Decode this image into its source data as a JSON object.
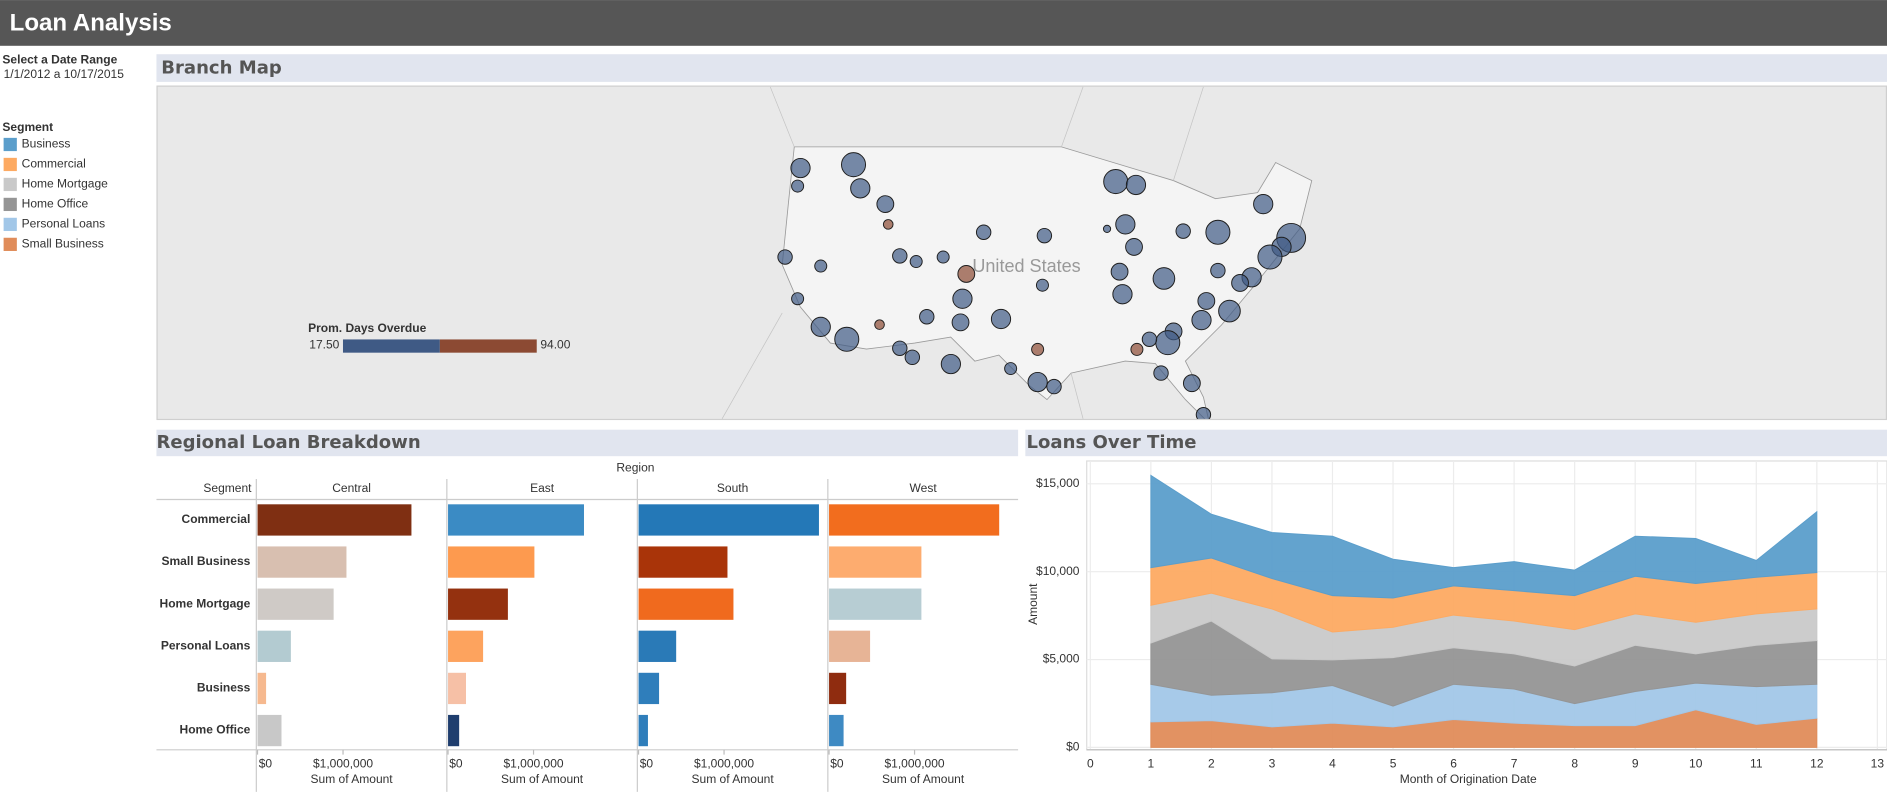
{
  "header": {
    "title": "Loan Analysis"
  },
  "filter": {
    "label": "Select a Date Range",
    "value": "1/1/2012 a 10/17/2015"
  },
  "chart_data": [
    {
      "type": "map",
      "title": "Branch Map",
      "place_label": "United States",
      "lon": [
        -122.2,
        -122.5,
        -116.7,
        -116.0,
        -113.4,
        -113.1,
        -123.8,
        -120.1,
        -122.5,
        -120.1,
        -117.4,
        -114.0,
        -111.9,
        -110.6,
        -106.6,
        -109.1,
        -105.6,
        -101.4,
        -103.2,
        -105.0,
        -105.4,
        -107.4,
        -111.9,
        -110.2,
        -100.4,
        -97.6,
        -95.9,
        -97.6,
        -96.9,
        -97.1,
        -89.5,
        -87.4,
        -88.5,
        -87.6,
        -89.1,
        -88.8,
        -84.5,
        -82.5,
        -78.9,
        -74.2,
        -71.3,
        -72.3,
        -73.5,
        -75.4,
        -76.6,
        -77.7,
        -80.1,
        -80.6,
        -83.5,
        -84.1,
        -87.3,
        -84.8,
        -81.6,
        -80.4,
        -86.0,
        -78.9,
        -90.4
      ],
      "lat": [
        47.8,
        46.2,
        48.1,
        46.0,
        44.6,
        42.8,
        39.9,
        39.1,
        36.2,
        33.7,
        32.6,
        33.9,
        31.8,
        31.0,
        30.4,
        34.6,
        34.1,
        34.4,
        42.1,
        38.4,
        36.2,
        39.9,
        40.0,
        39.5,
        30.0,
        28.8,
        28.4,
        31.7,
        41.8,
        37.4,
        46.6,
        46.3,
        42.8,
        40.8,
        38.6,
        36.6,
        38.0,
        42.2,
        42.1,
        44.6,
        41.6,
        40.8,
        39.9,
        38.1,
        37.6,
        35.1,
        36.0,
        34.3,
        33.3,
        32.3,
        31.7,
        29.6,
        28.7,
        25.9,
        32.6,
        38.7,
        42.4
      ],
      "days": [
        32,
        28,
        35,
        30,
        38,
        85,
        25,
        30,
        33,
        36,
        40,
        80,
        31,
        34,
        37,
        29,
        35,
        33,
        30,
        92,
        36,
        28,
        32,
        27,
        39,
        41,
        35,
        88,
        30,
        26,
        38,
        34,
        42,
        29,
        37,
        40,
        36,
        33,
        31,
        35,
        39,
        34,
        42,
        38,
        30,
        37,
        33,
        36,
        41,
        35,
        78,
        30,
        34,
        29,
        36,
        32,
        27
      ],
      "size": [
        8,
        5,
        10,
        8,
        7,
        4,
        6,
        5,
        5,
        8,
        10,
        4,
        6,
        6,
        8,
        6,
        7,
        8,
        6,
        7,
        8,
        5,
        6,
        5,
        5,
        8,
        6,
        5,
        6,
        5,
        10,
        8,
        8,
        7,
        7,
        8,
        9,
        6,
        10,
        8,
        12,
        8,
        10,
        8,
        7,
        9,
        7,
        8,
        7,
        10,
        5,
        6,
        7,
        6,
        6,
        6,
        3
      ],
      "color_legend": {
        "title": "Prom. Days Overdue",
        "range": [
          {
            "value": 17.5,
            "label": "17.50"
          },
          {
            "value": 94,
            "label": "94.00"
          }
        ],
        "colors": [
          "#3f5a85",
          "#8c4a33"
        ]
      }
    },
    {
      "type": "bar",
      "orientation": "horizontal",
      "title": "Regional Loan Breakdown",
      "column_title": "Region",
      "row_title": "Segment",
      "categories": [
        "Commercial",
        "Small Business",
        "Home Mortgage",
        "Personal Loans",
        "Business",
        "Home Office"
      ],
      "series": [
        {
          "name": "Central",
          "values": [
            1800000,
            1040000,
            890000,
            390000,
            100000,
            280000
          ],
          "colors": [
            "#7f2f12",
            "#d8bfb0",
            "#cfcac6",
            "#b3cbd1",
            "#f6b98f",
            "#c8c8c8"
          ]
        },
        {
          "name": "East",
          "values": [
            1590000,
            1010000,
            700000,
            410000,
            210000,
            130000
          ],
          "colors": [
            "#3b8bc4",
            "#fd9a4f",
            "#94310f",
            "#fda35e",
            "#f6c0a6",
            "#1f3e6e"
          ]
        },
        {
          "name": "South",
          "values": [
            2110000,
            1040000,
            1110000,
            440000,
            240000,
            110000
          ],
          "colors": [
            "#2478b7",
            "#a93409",
            "#f06a1e",
            "#2a7ab7",
            "#2f7ebb",
            "#2f7ebb"
          ]
        },
        {
          "name": "West",
          "values": [
            1990000,
            1080000,
            1080000,
            480000,
            200000,
            170000
          ],
          "colors": [
            "#f26d1e",
            "#fdac6f",
            "#b7cdd3",
            "#e7b496",
            "#8f2c0f",
            "#3e8ac3"
          ]
        }
      ],
      "xlim": [
        0,
        2200000
      ],
      "xticks": [
        {
          "value": 0,
          "label": "$0"
        },
        {
          "value": 1000000,
          "label": "$1,000,000"
        }
      ],
      "xlabel": "Sum of Amount"
    },
    {
      "type": "area",
      "stacked": true,
      "title": "Loans Over Time",
      "legend_title": "Segment",
      "x": [
        1,
        2,
        3,
        4,
        5,
        6,
        7,
        8,
        9,
        10,
        11,
        12
      ],
      "xlim": [
        0,
        13
      ],
      "xticks": [
        0,
        1,
        2,
        3,
        4,
        5,
        6,
        7,
        8,
        9,
        10,
        11,
        12,
        13
      ],
      "ylim": [
        0,
        16300
      ],
      "yticks": [
        {
          "value": 0,
          "label": "$0"
        },
        {
          "value": 5000,
          "label": "$5,000"
        },
        {
          "value": 10000,
          "label": "$10,000"
        },
        {
          "value": 15000,
          "label": "$15,000"
        }
      ],
      "xlabel": "Month of Origination Date",
      "ylabel": "Amount",
      "grid": true,
      "series": [
        {
          "name": "Business",
          "color": "#5b9ecb",
          "values": [
            5250,
            2490,
            2620,
            3380,
            2210,
            1040,
            1650,
            1450,
            2280,
            2560,
            960,
            3460
          ]
        },
        {
          "name": "Commercial",
          "color": "#fdaa62",
          "values": [
            2140,
            2000,
            1730,
            2070,
            1660,
            1660,
            1730,
            1940,
            2140,
            2210,
            2080,
            2070
          ]
        },
        {
          "name": "Home Mortgage",
          "color": "#c9c9c9",
          "values": [
            2150,
            1590,
            2840,
            1590,
            1730,
            1860,
            1870,
            2070,
            1790,
            1800,
            1790,
            1800
          ]
        },
        {
          "name": "Home Office",
          "color": "#959595",
          "values": [
            2350,
            4220,
            1930,
            1460,
            2760,
            2080,
            2000,
            2140,
            2630,
            1660,
            2350,
            2490
          ]
        },
        {
          "name": "Personal Loans",
          "color": "#a2c7e8",
          "values": [
            2140,
            1450,
            1940,
            2140,
            1180,
            2000,
            1940,
            1250,
            1940,
            1520,
            2150,
            1930
          ]
        },
        {
          "name": "Small Business",
          "color": "#e08c5a",
          "values": [
            1450,
            1520,
            1170,
            1380,
            1170,
            1590,
            1380,
            1240,
            1240,
            2140,
            1310,
            1660
          ]
        }
      ]
    }
  ]
}
